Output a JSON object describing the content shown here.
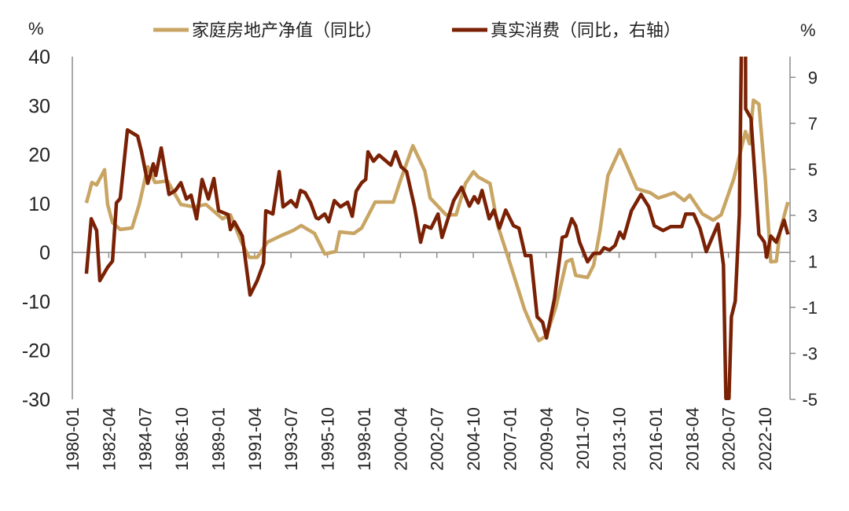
{
  "chart_data": {
    "type": "line",
    "title": "",
    "left_unit": "%",
    "right_unit": "%",
    "ylim_left": [
      -30,
      40
    ],
    "yticks_left": [
      40,
      30,
      20,
      10,
      0,
      -10,
      -20,
      -30
    ],
    "ylim_right": [
      -5,
      9.9
    ],
    "yticks_right": [
      9,
      7,
      5,
      3,
      1,
      -1,
      -3,
      -5
    ],
    "xlim": [
      1980.0,
      2024.3
    ],
    "xtick_labels": [
      "1980-01",
      "1982-04",
      "1984-07",
      "1986-10",
      "1989-01",
      "1991-04",
      "1993-07",
      "1995-10",
      "1998-01",
      "2000-04",
      "2002-07",
      "2004-10",
      "2007-01",
      "2009-04",
      "2011-07",
      "2013-10",
      "2016-01",
      "2018-04",
      "2020-07",
      "2022-10"
    ],
    "xtick_start": 1980.0,
    "xtick_step_years": 2.25,
    "grid": false,
    "legend_position": "top",
    "series": [
      {
        "name": "家庭房地产净值（同比）",
        "axis": "left",
        "color": "#C9A564",
        "points": [
          [
            1980.87,
            10.1
          ],
          [
            1981.21,
            14.3
          ],
          [
            1981.5,
            13.8
          ],
          [
            1981.99,
            16.9
          ],
          [
            1982.18,
            9.8
          ],
          [
            1982.48,
            6.1
          ],
          [
            1982.96,
            4.7
          ],
          [
            1983.69,
            5.0
          ],
          [
            1984.13,
            9.8
          ],
          [
            1984.66,
            17.5
          ],
          [
            1985.1,
            14.3
          ],
          [
            1985.87,
            14.6
          ],
          [
            1986.7,
            9.8
          ],
          [
            1987.52,
            9.3
          ],
          [
            1988.25,
            9.8
          ],
          [
            1989.27,
            6.9
          ],
          [
            1989.76,
            7.7
          ],
          [
            1990.44,
            2.1
          ],
          [
            1990.92,
            -1.0
          ],
          [
            1991.41,
            -1.0
          ],
          [
            1992.04,
            2.1
          ],
          [
            1992.86,
            3.4
          ],
          [
            1993.64,
            4.5
          ],
          [
            1994.13,
            5.5
          ],
          [
            1994.95,
            3.9
          ],
          [
            1995.58,
            -0.3
          ],
          [
            1996.26,
            0.2
          ],
          [
            1996.5,
            4.2
          ],
          [
            1997.38,
            3.9
          ],
          [
            1997.86,
            5.0
          ],
          [
            1998.69,
            10.3
          ],
          [
            1999.81,
            10.3
          ],
          [
            2000.29,
            15.1
          ],
          [
            2001.02,
            21.8
          ],
          [
            2001.75,
            16.7
          ],
          [
            2002.09,
            11.1
          ],
          [
            2003.06,
            7.7
          ],
          [
            2003.69,
            7.7
          ],
          [
            2004.27,
            14.1
          ],
          [
            2004.76,
            16.5
          ],
          [
            2005.05,
            15.4
          ],
          [
            2005.78,
            14.1
          ],
          [
            2006.26,
            5.5
          ],
          [
            2006.94,
            -1.4
          ],
          [
            2007.91,
            -11.6
          ],
          [
            2008.4,
            -15.4
          ],
          [
            2008.79,
            -18.0
          ],
          [
            2009.27,
            -17.0
          ],
          [
            2009.85,
            -11.1
          ],
          [
            2010.49,
            -1.9
          ],
          [
            2010.83,
            -1.4
          ],
          [
            2011.07,
            -4.7
          ],
          [
            2011.8,
            -5.1
          ],
          [
            2012.18,
            -2.6
          ],
          [
            2012.57,
            4.5
          ],
          [
            2013.06,
            15.7
          ],
          [
            2013.79,
            21.0
          ],
          [
            2014.22,
            17.8
          ],
          [
            2014.85,
            13.0
          ],
          [
            2015.68,
            12.2
          ],
          [
            2016.17,
            11.1
          ],
          [
            2017.14,
            12.2
          ],
          [
            2017.77,
            10.6
          ],
          [
            2018.11,
            11.7
          ],
          [
            2018.88,
            7.9
          ],
          [
            2019.56,
            6.6
          ],
          [
            2020.05,
            7.7
          ],
          [
            2020.83,
            15.1
          ],
          [
            2021.55,
            24.7
          ],
          [
            2021.8,
            22.2
          ],
          [
            2022.04,
            31.1
          ],
          [
            2022.38,
            30.3
          ],
          [
            2022.77,
            15.1
          ],
          [
            2023.11,
            -1.9
          ],
          [
            2023.45,
            -1.8
          ],
          [
            2023.69,
            4.5
          ],
          [
            2024.17,
            10.3
          ]
        ]
      },
      {
        "name": "真实消费（同比，右轴）",
        "axis": "right",
        "color": "#7A2105",
        "points": [
          [
            1980.87,
            0.46
          ],
          [
            1981.17,
            2.85
          ],
          [
            1981.5,
            2.34
          ],
          [
            1981.7,
            0.16
          ],
          [
            1982.18,
            0.74
          ],
          [
            1982.48,
            1.01
          ],
          [
            1982.72,
            3.54
          ],
          [
            1982.96,
            3.74
          ],
          [
            1983.4,
            6.71
          ],
          [
            1984.03,
            6.44
          ],
          [
            1984.27,
            5.76
          ],
          [
            1984.66,
            4.39
          ],
          [
            1985.0,
            5.24
          ],
          [
            1985.15,
            4.73
          ],
          [
            1985.49,
            5.93
          ],
          [
            1985.97,
            3.91
          ],
          [
            1986.36,
            4.08
          ],
          [
            1986.7,
            4.42
          ],
          [
            1987.04,
            3.71
          ],
          [
            1987.33,
            3.88
          ],
          [
            1987.67,
            2.85
          ],
          [
            1988.01,
            4.56
          ],
          [
            1988.4,
            3.71
          ],
          [
            1988.74,
            4.6
          ],
          [
            1989.03,
            3.2
          ],
          [
            1989.61,
            3.03
          ],
          [
            1989.76,
            2.38
          ],
          [
            1990.0,
            2.72
          ],
          [
            1990.49,
            2.1
          ],
          [
            1990.97,
            -0.46
          ],
          [
            1991.41,
            0.16
          ],
          [
            1991.8,
            0.91
          ],
          [
            1991.94,
            3.2
          ],
          [
            1992.38,
            3.06
          ],
          [
            1992.77,
            4.9
          ],
          [
            1993.01,
            3.37
          ],
          [
            1993.5,
            3.64
          ],
          [
            1993.83,
            3.37
          ],
          [
            1994.08,
            4.08
          ],
          [
            1994.37,
            3.98
          ],
          [
            1994.71,
            3.54
          ],
          [
            1995.05,
            2.89
          ],
          [
            1995.19,
            2.85
          ],
          [
            1995.58,
            3.06
          ],
          [
            1995.83,
            2.72
          ],
          [
            1996.17,
            3.64
          ],
          [
            1996.55,
            3.37
          ],
          [
            1996.99,
            3.57
          ],
          [
            1997.28,
            2.96
          ],
          [
            1997.52,
            4.05
          ],
          [
            1997.86,
            4.42
          ],
          [
            1998.11,
            4.56
          ],
          [
            1998.25,
            5.76
          ],
          [
            1998.59,
            5.35
          ],
          [
            1998.93,
            5.62
          ],
          [
            1999.66,
            5.18
          ],
          [
            1999.95,
            5.76
          ],
          [
            2000.29,
            5.11
          ],
          [
            2000.63,
            4.9
          ],
          [
            2001.12,
            3.37
          ],
          [
            2001.5,
            1.83
          ],
          [
            2001.75,
            2.55
          ],
          [
            2002.14,
            2.44
          ],
          [
            2002.57,
            3.06
          ],
          [
            2002.82,
            2.04
          ],
          [
            2003.54,
            3.64
          ],
          [
            2004.03,
            4.22
          ],
          [
            2004.51,
            3.4
          ],
          [
            2004.81,
            3.81
          ],
          [
            2005.05,
            3.54
          ],
          [
            2005.29,
            4.08
          ],
          [
            2005.73,
            2.85
          ],
          [
            2006.02,
            3.23
          ],
          [
            2006.36,
            2.44
          ],
          [
            2006.75,
            3.23
          ],
          [
            2007.23,
            2.55
          ],
          [
            2007.57,
            2.44
          ],
          [
            2007.96,
            1.25
          ],
          [
            2008.3,
            1.25
          ],
          [
            2008.69,
            -1.41
          ],
          [
            2009.03,
            -1.65
          ],
          [
            2009.27,
            -2.33
          ],
          [
            2009.76,
            -0.63
          ],
          [
            2010.24,
            2.04
          ],
          [
            2010.49,
            2.1
          ],
          [
            2010.83,
            2.85
          ],
          [
            2011.07,
            2.55
          ],
          [
            2011.31,
            1.83
          ],
          [
            2011.8,
            0.98
          ],
          [
            2012.18,
            1.35
          ],
          [
            2012.57,
            1.35
          ],
          [
            2012.82,
            1.59
          ],
          [
            2013.16,
            1.49
          ],
          [
            2013.5,
            1.69
          ],
          [
            2013.79,
            2.27
          ],
          [
            2014.03,
            2.0
          ],
          [
            2014.51,
            3.2
          ],
          [
            2015.1,
            3.91
          ],
          [
            2015.58,
            3.37
          ],
          [
            2015.92,
            2.55
          ],
          [
            2016.46,
            2.34
          ],
          [
            2016.94,
            2.51
          ],
          [
            2017.62,
            2.51
          ],
          [
            2017.86,
            3.06
          ],
          [
            2018.35,
            3.06
          ],
          [
            2018.74,
            2.44
          ],
          [
            2019.13,
            1.42
          ],
          [
            2019.47,
            2.0
          ],
          [
            2019.85,
            2.62
          ],
          [
            2020.19,
            0.84
          ],
          [
            2020.34,
            -4.96
          ],
          [
            2020.53,
            -4.96
          ],
          [
            2020.68,
            -1.41
          ],
          [
            2020.92,
            -0.73
          ],
          [
            2021.17,
            3.03
          ],
          [
            2021.31,
            11
          ],
          [
            2021.55,
            11
          ],
          [
            2021.56,
            7.63
          ],
          [
            2021.89,
            7.22
          ],
          [
            2022.38,
            2.17
          ],
          [
            2022.72,
            1.83
          ],
          [
            2022.86,
            1.18
          ],
          [
            2023.11,
            2.1
          ],
          [
            2023.45,
            1.83
          ],
          [
            2023.93,
            2.79
          ],
          [
            2024.17,
            2.17
          ]
        ]
      }
    ]
  }
}
